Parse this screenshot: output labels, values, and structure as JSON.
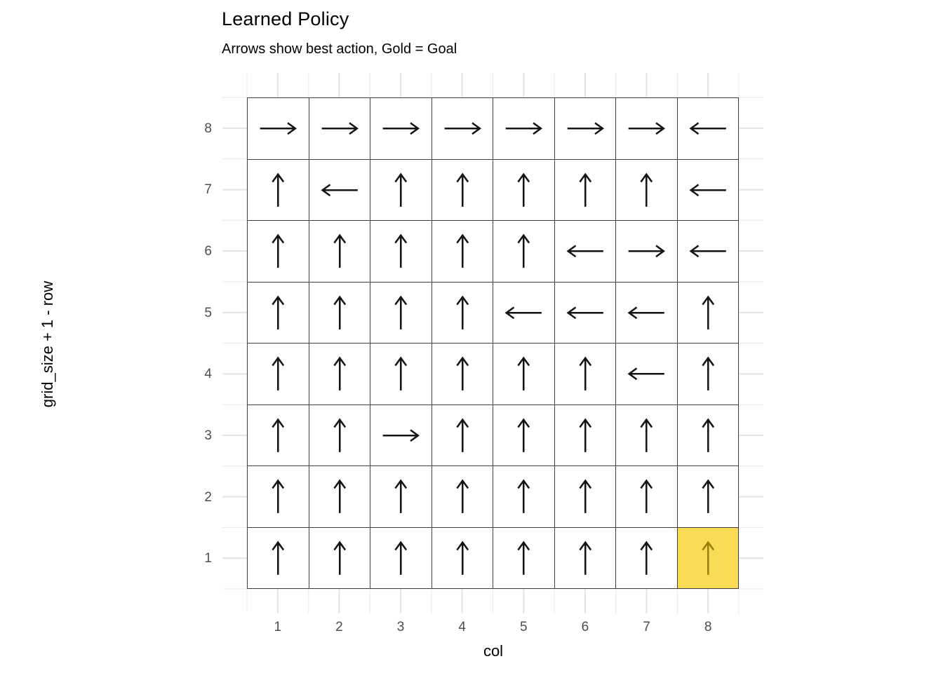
{
  "figure": {
    "title": "Learned Policy",
    "subtitle": "Arrows show best action, Gold = Goal"
  },
  "chart_data": {
    "type": "heatmap",
    "title": "Learned Policy",
    "subtitle": "Arrows show best action, Gold = Goal",
    "xlabel": "col",
    "ylabel": "grid_size + 1 - row",
    "x_ticks": [
      "1",
      "2",
      "3",
      "4",
      "5",
      "6",
      "7",
      "8"
    ],
    "y_ticks_top_to_bottom": [
      "8",
      "7",
      "6",
      "5",
      "4",
      "3",
      "2",
      "1"
    ],
    "xlim": [
      0.1,
      8.9
    ],
    "ylim": [
      0.1,
      8.9
    ],
    "grid": "major+minor",
    "legend": "none",
    "grid_size": 8,
    "goal_cell": {
      "col": 8,
      "row": 1
    },
    "policy": {
      "description": "best action per cell, rows listed from plot row 8 (top) down to plot row 1 (bottom), columns 1-8 left to right",
      "rows_top_to_bottom": [
        "8",
        "7",
        "6",
        "5",
        "4",
        "3",
        "2",
        "1"
      ],
      "actions": [
        [
          "right",
          "right",
          "right",
          "right",
          "right",
          "right",
          "right",
          "left"
        ],
        [
          "up",
          "left",
          "up",
          "up",
          "up",
          "up",
          "up",
          "left"
        ],
        [
          "up",
          "up",
          "up",
          "up",
          "up",
          "left",
          "right",
          "left"
        ],
        [
          "up",
          "up",
          "up",
          "up",
          "left",
          "left",
          "left",
          "up"
        ],
        [
          "up",
          "up",
          "up",
          "up",
          "up",
          "up",
          "left",
          "up"
        ],
        [
          "up",
          "up",
          "right",
          "up",
          "up",
          "up",
          "up",
          "up"
        ],
        [
          "up",
          "up",
          "up",
          "up",
          "up",
          "up",
          "up",
          "up"
        ],
        [
          "up",
          "up",
          "up",
          "up",
          "up",
          "up",
          "up",
          "up"
        ]
      ]
    },
    "colors": {
      "goal_fill": "#FADB55",
      "goal_arrow": "#9C7D0A",
      "arrow": "#141414",
      "tile_fill": "#FFFFFF",
      "tile_border": "#3F3F3F",
      "grid_major": "#E3E3E3",
      "grid_minor": "#ECECEC",
      "axis_text": "#4D4D4D",
      "axis_title": "#000000",
      "background": "#FFFFFF"
    }
  }
}
